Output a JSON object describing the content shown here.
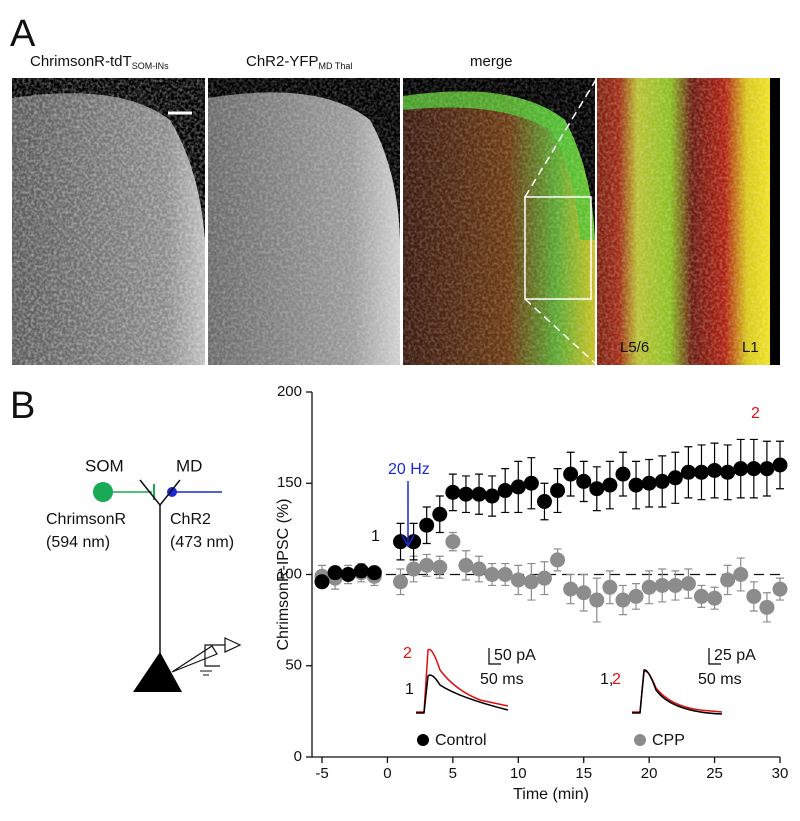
{
  "panel_a": {
    "label": "A",
    "images": [
      {
        "title": "ChrimsonR-tdT",
        "subscript": "SOM-INs"
      },
      {
        "title": "ChR2-YFP",
        "subscript": "MD Thal"
      },
      {
        "title": "merge"
      },
      {
        "layer_labels": [
          "L5/6",
          "L1"
        ]
      }
    ]
  },
  "panel_b": {
    "label": "B",
    "schematic": {
      "left": {
        "name": "SOM",
        "opsin": "ChrimsonR",
        "wavelength": "(594 nm)"
      },
      "right": {
        "name": "MD",
        "opsin": "ChR2",
        "wavelength": "(473 nm)"
      }
    }
  },
  "chart_data": {
    "type": "scatter",
    "x_label": "Time (min)",
    "y_label": "ChrimsonR-IPSC (%)",
    "xlim": [
      -5,
      30
    ],
    "xticks": [
      -5,
      0,
      5,
      10,
      15,
      20,
      25,
      30
    ],
    "ylim": [
      0,
      200
    ],
    "yticks": [
      0,
      50,
      100,
      150,
      200
    ],
    "reference_line": 100,
    "annotations": {
      "stimulus": "20 Hz",
      "before": "1",
      "after": "2"
    },
    "series": [
      {
        "name": "Control",
        "color": "#000000",
        "x": [
          -5,
          -4,
          -3,
          -2,
          -1,
          1,
          2,
          3,
          4,
          5,
          6,
          7,
          8,
          9,
          10,
          11,
          12,
          13,
          14,
          15,
          16,
          17,
          18,
          19,
          20,
          21,
          22,
          23,
          24,
          25,
          26,
          27,
          28,
          29,
          30
        ],
        "values": [
          96,
          101,
          100,
          102,
          101,
          118,
          118,
          127,
          133,
          145,
          144,
          144,
          143,
          146,
          148,
          150,
          140,
          146,
          155,
          151,
          147,
          149,
          155,
          149,
          150,
          151,
          153,
          156,
          156,
          157,
          156,
          158,
          158,
          158,
          160
        ],
        "errors": [
          3,
          3,
          3,
          3,
          3,
          10,
          10,
          10,
          10,
          10,
          10,
          11,
          11,
          12,
          14,
          14,
          10,
          12,
          12,
          11,
          12,
          13,
          12,
          13,
          13,
          14,
          14,
          14,
          15,
          15,
          15,
          16,
          16,
          15,
          13
        ]
      },
      {
        "name": "CPP",
        "color": "#8c8c8c",
        "x": [
          -5,
          -4,
          -3,
          -2,
          -1,
          1,
          2,
          3,
          4,
          5,
          6,
          7,
          8,
          9,
          10,
          11,
          12,
          13,
          14,
          15,
          16,
          17,
          18,
          19,
          20,
          21,
          22,
          23,
          24,
          25,
          26,
          27,
          28,
          29,
          30
        ],
        "values": [
          99,
          98,
          100,
          101,
          99,
          96,
          103,
          105,
          104,
          118,
          105,
          103,
          100,
          100,
          97,
          96,
          98,
          108,
          92,
          90,
          86,
          93,
          86,
          88,
          93,
          94,
          94,
          95,
          88,
          87,
          97,
          100,
          88,
          82,
          92
        ],
        "errors": [
          6,
          6,
          5,
          5,
          5,
          7,
          7,
          6,
          6,
          5,
          8,
          7,
          6,
          6,
          8,
          10,
          9,
          6,
          8,
          10,
          12,
          9,
          8,
          7,
          9,
          9,
          8,
          8,
          6,
          6,
          8,
          9,
          8,
          8,
          6
        ]
      }
    ],
    "insets": [
      {
        "trace_labels": [
          "2",
          "1"
        ],
        "scale_y": "50 pA",
        "scale_x": "50 ms"
      },
      {
        "trace_labels": [
          "1,",
          "2"
        ],
        "scale_y": "25 pA",
        "scale_x": "50 ms"
      }
    ]
  }
}
